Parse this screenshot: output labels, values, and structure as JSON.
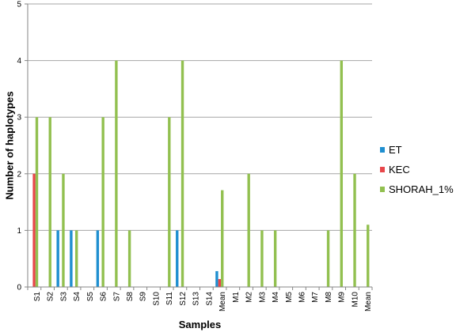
{
  "chart_data": {
    "type": "bar",
    "title": "",
    "xlabel": "Samples",
    "ylabel": "Number of haplotypes",
    "ylim": [
      0,
      5
    ],
    "yticks": [
      "0",
      "1",
      "2",
      "3",
      "4",
      "5"
    ],
    "grid": "horizontal",
    "legend_position": "right",
    "categories": [
      "S1",
      "S2",
      "S3",
      "S4",
      "S5",
      "S6",
      "S7",
      "S8",
      "S9",
      "S10",
      "S11",
      "S12",
      "S13",
      "S14",
      "Mean",
      "M1",
      "M2",
      "M3",
      "M4",
      "M5",
      "M6",
      "M7",
      "M8",
      "M9",
      "M10",
      "Mean"
    ],
    "series": [
      {
        "name": "ET",
        "color": "#1f8fd0",
        "values": [
          0,
          0,
          1,
          1,
          0,
          1,
          0,
          0,
          0,
          0,
          0,
          1,
          0,
          0,
          0.28,
          0,
          0,
          0,
          0,
          0,
          0,
          0,
          0,
          0,
          0,
          0
        ]
      },
      {
        "name": "KEC",
        "color": "#e8474b",
        "values": [
          2,
          0,
          0,
          0,
          0,
          0,
          0,
          0,
          0,
          0,
          0,
          0,
          0,
          0,
          0.14,
          0,
          0,
          0,
          0,
          0,
          0,
          0,
          0,
          0,
          0,
          0
        ]
      },
      {
        "name": "SHORAH_1%",
        "color": "#92c050",
        "values": [
          3,
          3,
          2,
          1,
          0,
          3,
          4,
          1,
          0,
          0,
          3,
          4,
          0,
          0,
          1.71,
          0,
          2,
          1,
          1,
          0,
          0,
          0,
          1,
          4,
          2,
          1.1
        ]
      }
    ]
  }
}
